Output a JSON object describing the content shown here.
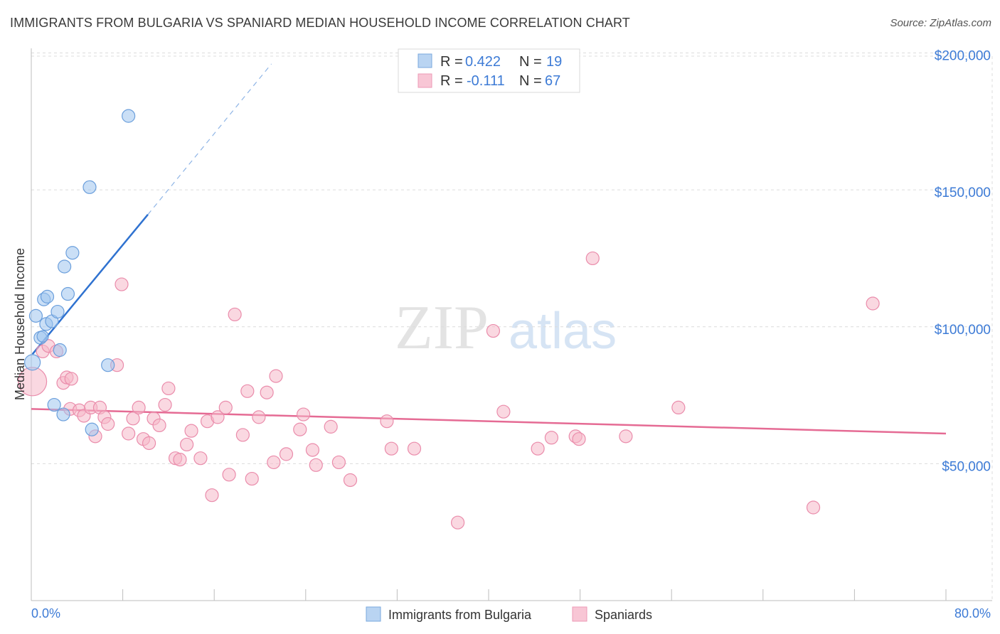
{
  "header": {
    "title": "IMMIGRANTS FROM BULGARIA VS SPANIARD MEDIAN HOUSEHOLD INCOME CORRELATION CHART",
    "source": "Source: ZipAtlas.com"
  },
  "watermark": {
    "zip": "ZIP",
    "atlas": "atlas"
  },
  "chart_data": {
    "type": "scatter",
    "title": "IMMIGRANTS FROM BULGARIA VS SPANIARD MEDIAN HOUSEHOLD INCOME CORRELATION CHART",
    "ylabel": "Median Household Income",
    "xlabel": "",
    "xlim": [
      0,
      80
    ],
    "ylim": [
      0,
      210000
    ],
    "x_tick_labels": [
      "0.0%",
      "80.0%"
    ],
    "y_ticks": [
      50000,
      100000,
      150000,
      200000
    ],
    "y_tick_labels": [
      "$50,000",
      "$100,000",
      "$150,000",
      "$200,000"
    ],
    "grid": true,
    "legend_placement": "top-center",
    "stats": [
      {
        "r_label": "R =",
        "r_value": "0.422",
        "n_label": "N =",
        "n_value": "19"
      },
      {
        "r_label": "R =",
        "r_value": "-0.111",
        "n_label": "N =",
        "n_value": "67"
      }
    ],
    "series": [
      {
        "name": "Immigrants from Bulgaria",
        "color": "#9ec4ee",
        "stroke": "#6b9fdc",
        "trend_color": "#2f72d0",
        "trend": {
          "x0": 0.1,
          "y0": 90000,
          "x1": 10.2,
          "y1": 141000,
          "dash_x1": 21,
          "dash_y1": 196000
        },
        "points": [
          [
            0.1,
            87000,
            11
          ],
          [
            0.4,
            104000,
            9
          ],
          [
            0.8,
            96000,
            9
          ],
          [
            1.0,
            96500,
            8
          ],
          [
            1.1,
            110000,
            9
          ],
          [
            1.4,
            111000,
            9
          ],
          [
            1.3,
            101000,
            9
          ],
          [
            1.8,
            102000,
            9
          ],
          [
            2.3,
            105500,
            9
          ],
          [
            2.5,
            91500,
            9
          ],
          [
            2.9,
            122000,
            9
          ],
          [
            3.2,
            112000,
            9
          ],
          [
            3.6,
            127000,
            9
          ],
          [
            5.1,
            151000,
            9
          ],
          [
            8.5,
            177000,
            9
          ],
          [
            6.7,
            86000,
            9
          ],
          [
            2.0,
            71500,
            9
          ],
          [
            2.8,
            68000,
            9
          ],
          [
            5.3,
            62500,
            9
          ]
        ]
      },
      {
        "name": "Spaniards",
        "color": "#f6b8c9",
        "stroke": "#ea8cab",
        "trend_color": "#e56b94",
        "trend": {
          "x0": 0,
          "y0": 70000,
          "x1": 80,
          "y1": 61000
        },
        "points": [
          [
            0.1,
            80000,
            20
          ],
          [
            1.0,
            91000,
            9
          ],
          [
            1.5,
            93000,
            9
          ],
          [
            2.2,
            91000,
            9
          ],
          [
            2.8,
            79500,
            9
          ],
          [
            3.1,
            81500,
            9
          ],
          [
            3.5,
            81000,
            9
          ],
          [
            3.4,
            70000,
            9
          ],
          [
            4.2,
            69500,
            9
          ],
          [
            4.6,
            67500,
            9
          ],
          [
            5.2,
            70500,
            9
          ],
          [
            5.6,
            60000,
            9
          ],
          [
            6.0,
            70500,
            9
          ],
          [
            6.4,
            67000,
            9
          ],
          [
            6.7,
            64500,
            9
          ],
          [
            7.5,
            86000,
            9
          ],
          [
            7.9,
            115500,
            9
          ],
          [
            8.5,
            61000,
            9
          ],
          [
            8.9,
            66500,
            9
          ],
          [
            9.4,
            70500,
            9
          ],
          [
            9.8,
            59000,
            9
          ],
          [
            10.3,
            57500,
            9
          ],
          [
            10.7,
            66500,
            9
          ],
          [
            11.2,
            64000,
            9
          ],
          [
            11.7,
            71500,
            9
          ],
          [
            12.0,
            77500,
            9
          ],
          [
            12.6,
            52000,
            9
          ],
          [
            13.0,
            51500,
            9
          ],
          [
            13.6,
            57000,
            9
          ],
          [
            14.0,
            62000,
            9
          ],
          [
            14.8,
            52000,
            9
          ],
          [
            15.4,
            65500,
            9
          ],
          [
            15.8,
            38500,
            9
          ],
          [
            16.3,
            67000,
            9
          ],
          [
            17.0,
            70500,
            9
          ],
          [
            17.3,
            46000,
            9
          ],
          [
            17.8,
            104500,
            9
          ],
          [
            18.5,
            60500,
            9
          ],
          [
            18.9,
            76500,
            9
          ],
          [
            19.3,
            44500,
            9
          ],
          [
            19.9,
            67000,
            9
          ],
          [
            20.6,
            76000,
            9
          ],
          [
            21.2,
            50500,
            9
          ],
          [
            21.4,
            82000,
            9
          ],
          [
            22.3,
            53500,
            9
          ],
          [
            23.5,
            62500,
            9
          ],
          [
            23.8,
            68000,
            9
          ],
          [
            24.6,
            55000,
            9
          ],
          [
            24.9,
            49500,
            9
          ],
          [
            26.2,
            63500,
            9
          ],
          [
            26.9,
            50500,
            9
          ],
          [
            27.9,
            44000,
            9
          ],
          [
            31.1,
            65500,
            9
          ],
          [
            31.5,
            55500,
            9
          ],
          [
            33.5,
            55500,
            9
          ],
          [
            37.3,
            28500,
            9
          ],
          [
            40.4,
            98500,
            9
          ],
          [
            41.3,
            69000,
            9
          ],
          [
            44.3,
            55500,
            9
          ],
          [
            45.5,
            59500,
            9
          ],
          [
            47.6,
            60000,
            9
          ],
          [
            47.9,
            59000,
            9
          ],
          [
            49.1,
            125000,
            9
          ],
          [
            52.0,
            60000,
            9
          ],
          [
            56.6,
            70500,
            9
          ],
          [
            73.6,
            108500,
            9
          ],
          [
            68.4,
            34000,
            9
          ]
        ]
      }
    ]
  }
}
